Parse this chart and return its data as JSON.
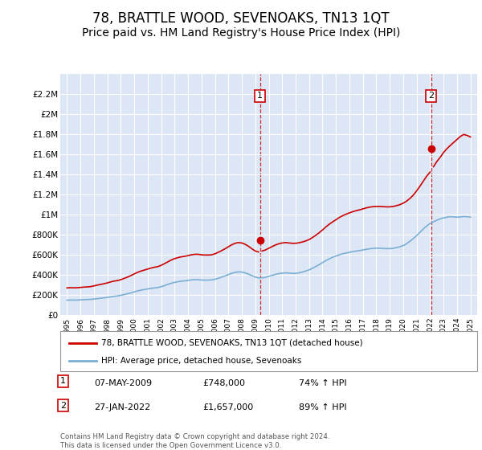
{
  "title": "78, BRATTLE WOOD, SEVENOAKS, TN13 1QT",
  "subtitle": "Price paid vs. HM Land Registry's House Price Index (HPI)",
  "title_fontsize": 12,
  "subtitle_fontsize": 10,
  "background_color": "#ffffff",
  "plot_bg_color": "#dce6f5",
  "grid_color": "#ffffff",
  "red_line_color": "#cc0000",
  "blue_line_color": "#7bafd4",
  "dashed_line_color": "#cc0000",
  "marker1_date_x": 2009.35,
  "marker2_date_x": 2022.08,
  "marker1_y": 748000,
  "marker2_y": 1657000,
  "ylim_min": 0,
  "ylim_max": 2400000,
  "xlim_min": 1994.5,
  "xlim_max": 2025.5,
  "yticks": [
    0,
    200000,
    400000,
    600000,
    800000,
    1000000,
    1200000,
    1400000,
    1600000,
    1800000,
    2000000,
    2200000
  ],
  "ytick_labels": [
    "£0",
    "£200K",
    "£400K",
    "£600K",
    "£800K",
    "£1M",
    "£1.2M",
    "£1.4M",
    "£1.6M",
    "£1.8M",
    "£2M",
    "£2.2M"
  ],
  "xtick_years": [
    1995,
    1996,
    1997,
    1998,
    1999,
    2000,
    2001,
    2002,
    2003,
    2004,
    2005,
    2006,
    2007,
    2008,
    2009,
    2010,
    2011,
    2012,
    2013,
    2014,
    2015,
    2016,
    2017,
    2018,
    2019,
    2020,
    2021,
    2022,
    2023,
    2024,
    2025
  ],
  "legend_label_red": "78, BRATTLE WOOD, SEVENOAKS, TN13 1QT (detached house)",
  "legend_label_blue": "HPI: Average price, detached house, Sevenoaks",
  "note1_label": "1",
  "note1_date": "07-MAY-2009",
  "note1_price": "£748,000",
  "note1_hpi": "74% ↑ HPI",
  "note2_label": "2",
  "note2_date": "27-JAN-2022",
  "note2_price": "£1,657,000",
  "note2_hpi": "89% ↑ HPI",
  "footer": "Contains HM Land Registry data © Crown copyright and database right 2024.\nThis data is licensed under the Open Government Licence v3.0.",
  "red_line_data": [
    [
      1995.0,
      270000
    ],
    [
      1995.25,
      272000
    ],
    [
      1995.5,
      271000
    ],
    [
      1995.75,
      272000
    ],
    [
      1996.0,
      275000
    ],
    [
      1996.25,
      278000
    ],
    [
      1996.5,
      280000
    ],
    [
      1996.75,
      283000
    ],
    [
      1997.0,
      290000
    ],
    [
      1997.25,
      298000
    ],
    [
      1997.5,
      305000
    ],
    [
      1997.75,
      312000
    ],
    [
      1998.0,
      320000
    ],
    [
      1998.25,
      330000
    ],
    [
      1998.5,
      338000
    ],
    [
      1998.75,
      343000
    ],
    [
      1999.0,
      352000
    ],
    [
      1999.25,
      365000
    ],
    [
      1999.5,
      378000
    ],
    [
      1999.75,
      393000
    ],
    [
      2000.0,
      410000
    ],
    [
      2000.25,
      425000
    ],
    [
      2000.5,
      438000
    ],
    [
      2000.75,
      448000
    ],
    [
      2001.0,
      458000
    ],
    [
      2001.25,
      468000
    ],
    [
      2001.5,
      476000
    ],
    [
      2001.75,
      482000
    ],
    [
      2002.0,
      495000
    ],
    [
      2002.25,
      512000
    ],
    [
      2002.5,
      530000
    ],
    [
      2002.75,
      548000
    ],
    [
      2003.0,
      562000
    ],
    [
      2003.25,
      572000
    ],
    [
      2003.5,
      580000
    ],
    [
      2003.75,
      585000
    ],
    [
      2004.0,
      592000
    ],
    [
      2004.25,
      600000
    ],
    [
      2004.5,
      605000
    ],
    [
      2004.75,
      605000
    ],
    [
      2005.0,
      600000
    ],
    [
      2005.25,
      598000
    ],
    [
      2005.5,
      598000
    ],
    [
      2005.75,
      600000
    ],
    [
      2006.0,
      610000
    ],
    [
      2006.25,
      625000
    ],
    [
      2006.5,
      642000
    ],
    [
      2006.75,
      660000
    ],
    [
      2007.0,
      680000
    ],
    [
      2007.25,
      700000
    ],
    [
      2007.5,
      715000
    ],
    [
      2007.75,
      722000
    ],
    [
      2008.0,
      718000
    ],
    [
      2008.25,
      705000
    ],
    [
      2008.5,
      685000
    ],
    [
      2008.75,
      660000
    ],
    [
      2009.0,
      638000
    ],
    [
      2009.25,
      628000
    ],
    [
      2009.35,
      748000
    ],
    [
      2009.5,
      638000
    ],
    [
      2009.75,
      648000
    ],
    [
      2010.0,
      665000
    ],
    [
      2010.25,
      682000
    ],
    [
      2010.5,
      698000
    ],
    [
      2010.75,
      710000
    ],
    [
      2011.0,
      718000
    ],
    [
      2011.25,
      722000
    ],
    [
      2011.5,
      718000
    ],
    [
      2011.75,
      715000
    ],
    [
      2012.0,
      715000
    ],
    [
      2012.25,
      720000
    ],
    [
      2012.5,
      728000
    ],
    [
      2012.75,
      738000
    ],
    [
      2013.0,
      752000
    ],
    [
      2013.25,
      772000
    ],
    [
      2013.5,
      795000
    ],
    [
      2013.75,
      820000
    ],
    [
      2014.0,
      848000
    ],
    [
      2014.25,
      878000
    ],
    [
      2014.5,
      905000
    ],
    [
      2014.75,
      928000
    ],
    [
      2015.0,
      950000
    ],
    [
      2015.25,
      972000
    ],
    [
      2015.5,
      990000
    ],
    [
      2015.75,
      1005000
    ],
    [
      2016.0,
      1018000
    ],
    [
      2016.25,
      1030000
    ],
    [
      2016.5,
      1040000
    ],
    [
      2016.75,
      1048000
    ],
    [
      2017.0,
      1058000
    ],
    [
      2017.25,
      1068000
    ],
    [
      2017.5,
      1075000
    ],
    [
      2017.75,
      1080000
    ],
    [
      2018.0,
      1082000
    ],
    [
      2018.25,
      1082000
    ],
    [
      2018.5,
      1080000
    ],
    [
      2018.75,
      1078000
    ],
    [
      2019.0,
      1078000
    ],
    [
      2019.25,
      1082000
    ],
    [
      2019.5,
      1090000
    ],
    [
      2019.75,
      1100000
    ],
    [
      2020.0,
      1115000
    ],
    [
      2020.25,
      1135000
    ],
    [
      2020.5,
      1162000
    ],
    [
      2020.75,
      1195000
    ],
    [
      2021.0,
      1238000
    ],
    [
      2021.25,
      1285000
    ],
    [
      2021.5,
      1335000
    ],
    [
      2021.75,
      1385000
    ],
    [
      2022.0,
      1425000
    ],
    [
      2022.08,
      1657000
    ],
    [
      2022.25,
      1478000
    ],
    [
      2022.5,
      1530000
    ],
    [
      2022.75,
      1572000
    ],
    [
      2023.0,
      1620000
    ],
    [
      2023.25,
      1658000
    ],
    [
      2023.5,
      1690000
    ],
    [
      2023.75,
      1720000
    ],
    [
      2024.0,
      1750000
    ],
    [
      2024.25,
      1780000
    ],
    [
      2024.5,
      1800000
    ],
    [
      2024.75,
      1790000
    ],
    [
      2025.0,
      1775000
    ]
  ],
  "blue_line_data": [
    [
      1995.0,
      148000
    ],
    [
      1995.25,
      149000
    ],
    [
      1995.5,
      149000
    ],
    [
      1995.75,
      149000
    ],
    [
      1996.0,
      151000
    ],
    [
      1996.25,
      153000
    ],
    [
      1996.5,
      154000
    ],
    [
      1996.75,
      156000
    ],
    [
      1997.0,
      159000
    ],
    [
      1997.25,
      163000
    ],
    [
      1997.5,
      167000
    ],
    [
      1997.75,
      171000
    ],
    [
      1998.0,
      175000
    ],
    [
      1998.25,
      181000
    ],
    [
      1998.5,
      186000
    ],
    [
      1998.75,
      190000
    ],
    [
      1999.0,
      196000
    ],
    [
      1999.25,
      204000
    ],
    [
      1999.5,
      212000
    ],
    [
      1999.75,
      220000
    ],
    [
      2000.0,
      230000
    ],
    [
      2000.25,
      240000
    ],
    [
      2000.5,
      248000
    ],
    [
      2000.75,
      254000
    ],
    [
      2001.0,
      260000
    ],
    [
      2001.25,
      265000
    ],
    [
      2001.5,
      270000
    ],
    [
      2001.75,
      274000
    ],
    [
      2002.0,
      282000
    ],
    [
      2002.25,
      293000
    ],
    [
      2002.5,
      305000
    ],
    [
      2002.75,
      316000
    ],
    [
      2003.0,
      325000
    ],
    [
      2003.25,
      332000
    ],
    [
      2003.5,
      337000
    ],
    [
      2003.75,
      340000
    ],
    [
      2004.0,
      345000
    ],
    [
      2004.25,
      350000
    ],
    [
      2004.5,
      352000
    ],
    [
      2004.75,
      352000
    ],
    [
      2005.0,
      349000
    ],
    [
      2005.25,
      348000
    ],
    [
      2005.5,
      348000
    ],
    [
      2005.75,
      350000
    ],
    [
      2006.0,
      356000
    ],
    [
      2006.25,
      366000
    ],
    [
      2006.5,
      378000
    ],
    [
      2006.75,
      390000
    ],
    [
      2007.0,
      403000
    ],
    [
      2007.25,
      416000
    ],
    [
      2007.5,
      425000
    ],
    [
      2007.75,
      430000
    ],
    [
      2008.0,
      428000
    ],
    [
      2008.25,
      420000
    ],
    [
      2008.5,
      408000
    ],
    [
      2008.75,
      392000
    ],
    [
      2009.0,
      378000
    ],
    [
      2009.25,
      370000
    ],
    [
      2009.5,
      370000
    ],
    [
      2009.75,
      375000
    ],
    [
      2010.0,
      385000
    ],
    [
      2010.25,
      395000
    ],
    [
      2010.5,
      405000
    ],
    [
      2010.75,
      412000
    ],
    [
      2011.0,
      418000
    ],
    [
      2011.25,
      420000
    ],
    [
      2011.5,
      418000
    ],
    [
      2011.75,
      415000
    ],
    [
      2012.0,
      415000
    ],
    [
      2012.25,
      420000
    ],
    [
      2012.5,
      428000
    ],
    [
      2012.75,
      438000
    ],
    [
      2013.0,
      450000
    ],
    [
      2013.25,
      466000
    ],
    [
      2013.5,
      484000
    ],
    [
      2013.75,
      502000
    ],
    [
      2014.0,
      522000
    ],
    [
      2014.25,
      542000
    ],
    [
      2014.5,
      560000
    ],
    [
      2014.75,
      575000
    ],
    [
      2015.0,
      588000
    ],
    [
      2015.25,
      600000
    ],
    [
      2015.5,
      610000
    ],
    [
      2015.75,
      618000
    ],
    [
      2016.0,
      625000
    ],
    [
      2016.25,
      632000
    ],
    [
      2016.5,
      638000
    ],
    [
      2016.75,
      642000
    ],
    [
      2017.0,
      648000
    ],
    [
      2017.25,
      655000
    ],
    [
      2017.5,
      660000
    ],
    [
      2017.75,
      664000
    ],
    [
      2018.0,
      666000
    ],
    [
      2018.25,
      666000
    ],
    [
      2018.5,
      664000
    ],
    [
      2018.75,
      662000
    ],
    [
      2019.0,
      662000
    ],
    [
      2019.25,
      665000
    ],
    [
      2019.5,
      672000
    ],
    [
      2019.75,
      680000
    ],
    [
      2020.0,
      692000
    ],
    [
      2020.25,
      710000
    ],
    [
      2020.5,
      735000
    ],
    [
      2020.75,
      762000
    ],
    [
      2021.0,
      792000
    ],
    [
      2021.25,
      825000
    ],
    [
      2021.5,
      858000
    ],
    [
      2021.75,
      888000
    ],
    [
      2022.0,
      912000
    ],
    [
      2022.25,
      930000
    ],
    [
      2022.5,
      945000
    ],
    [
      2022.75,
      958000
    ],
    [
      2023.0,
      968000
    ],
    [
      2023.25,
      975000
    ],
    [
      2023.5,
      980000
    ],
    [
      2023.75,
      978000
    ],
    [
      2024.0,
      975000
    ],
    [
      2024.25,
      978000
    ],
    [
      2024.5,
      982000
    ],
    [
      2024.75,
      980000
    ],
    [
      2025.0,
      975000
    ]
  ]
}
